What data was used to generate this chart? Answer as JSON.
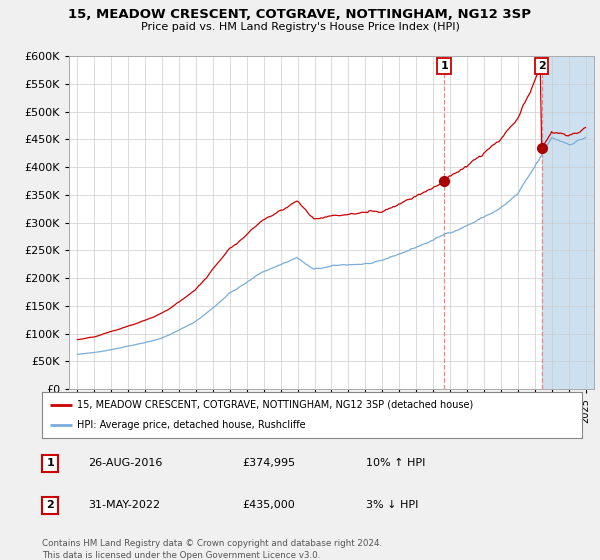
{
  "title": "15, MEADOW CRESCENT, COTGRAVE, NOTTINGHAM, NG12 3SP",
  "subtitle": "Price paid vs. HM Land Registry's House Price Index (HPI)",
  "ylim": [
    0,
    600000
  ],
  "yticks": [
    0,
    50000,
    100000,
    150000,
    200000,
    250000,
    300000,
    350000,
    400000,
    450000,
    500000,
    550000,
    600000
  ],
  "xlim_start": 1994.5,
  "xlim_end": 2025.5,
  "sale1_date": 2016.65,
  "sale1_price": 374995,
  "sale2_date": 2022.42,
  "sale2_price": 435000,
  "legend_line1": "15, MEADOW CRESCENT, COTGRAVE, NOTTINGHAM, NG12 3SP (detached house)",
  "legend_line2": "HPI: Average price, detached house, Rushcliffe",
  "footer": "Contains HM Land Registry data © Crown copyright and database right 2024.\nThis data is licensed under the Open Government Licence v3.0.",
  "line_color_red": "#cc0000",
  "line_color_blue": "#7aaddb",
  "shade_color": "#cce0f0",
  "background_color": "#f0f0f0",
  "plot_bg_color": "#ffffff",
  "dashed_line_color": "#ee8888",
  "marker_color_red": "#aa0000"
}
